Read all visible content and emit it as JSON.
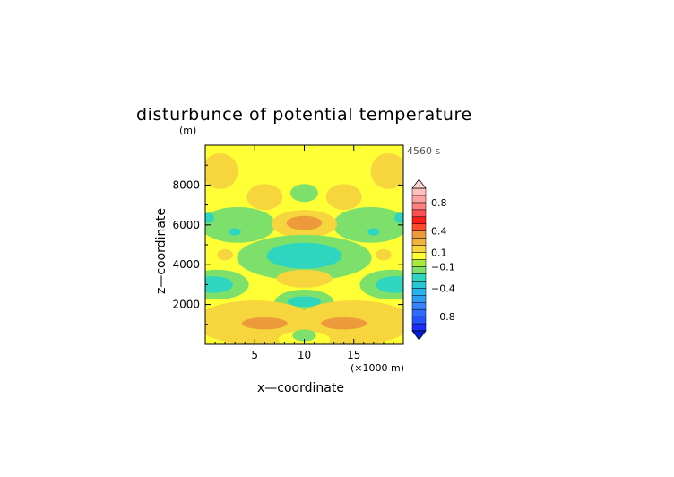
{
  "chart_data": {
    "type": "heatmap",
    "title": "disturbunce of potential temperature",
    "unit_label": "(m)",
    "time_label": "4560 s",
    "xlabel": "x—coordinate",
    "ylabel": "z—coordinate",
    "x_unit": "(×1000 m)",
    "xlim": [
      0,
      20
    ],
    "ylim": [
      0,
      10000
    ],
    "x_ticks": [
      {
        "value": 5,
        "label": "5"
      },
      {
        "value": 10,
        "label": "10"
      },
      {
        "value": 15,
        "label": "15"
      }
    ],
    "y_ticks": [
      {
        "value": 2000,
        "label": "2000"
      },
      {
        "value": 4000,
        "label": "4000"
      },
      {
        "value": 6000,
        "label": "6000"
      },
      {
        "value": 8000,
        "label": "8000"
      }
    ],
    "background_value": 0.0,
    "regions": [
      {
        "cx": 1.5,
        "cy": 8700,
        "rx": 1.8,
        "ry": 900,
        "value": 0.15
      },
      {
        "cx": 18.5,
        "cy": 8700,
        "rx": 1.8,
        "ry": 900,
        "value": 0.15
      },
      {
        "cx": 6.0,
        "cy": 7400,
        "rx": 1.8,
        "ry": 650,
        "value": 0.15
      },
      {
        "cx": 14.0,
        "cy": 7400,
        "rx": 1.8,
        "ry": 650,
        "value": 0.15
      },
      {
        "cx": 10.0,
        "cy": 7600,
        "rx": 1.4,
        "ry": 450,
        "value": -0.15
      },
      {
        "cx": 3.3,
        "cy": 6000,
        "rx": 3.8,
        "ry": 900,
        "value": -0.15
      },
      {
        "cx": 16.7,
        "cy": 6000,
        "rx": 3.8,
        "ry": 900,
        "value": -0.15
      },
      {
        "cx": 10.0,
        "cy": 6050,
        "rx": 3.3,
        "ry": 700,
        "value": 0.15
      },
      {
        "cx": 10.0,
        "cy": 6100,
        "rx": 1.8,
        "ry": 350,
        "value": 0.3
      },
      {
        "cx": 0.3,
        "cy": 6350,
        "rx": 0.6,
        "ry": 260,
        "value": -0.3
      },
      {
        "cx": 19.7,
        "cy": 6350,
        "rx": 0.6,
        "ry": 260,
        "value": -0.3
      },
      {
        "cx": 3.0,
        "cy": 5650,
        "rx": 0.6,
        "ry": 190,
        "value": -0.3
      },
      {
        "cx": 17.0,
        "cy": 5650,
        "rx": 0.6,
        "ry": 190,
        "value": -0.3
      },
      {
        "cx": 10.0,
        "cy": 4350,
        "rx": 6.8,
        "ry": 1150,
        "value": -0.15
      },
      {
        "cx": 10.0,
        "cy": 4450,
        "rx": 3.8,
        "ry": 650,
        "value": -0.3
      },
      {
        "cx": 2.0,
        "cy": 4500,
        "rx": 0.8,
        "ry": 280,
        "value": 0.15
      },
      {
        "cx": 18.0,
        "cy": 4500,
        "rx": 0.8,
        "ry": 280,
        "value": 0.15
      },
      {
        "cx": 1.2,
        "cy": 3000,
        "rx": 3.2,
        "ry": 750,
        "value": -0.15
      },
      {
        "cx": 18.8,
        "cy": 3000,
        "rx": 3.2,
        "ry": 750,
        "value": -0.15
      },
      {
        "cx": 0.8,
        "cy": 3000,
        "rx": 2.0,
        "ry": 420,
        "value": -0.3
      },
      {
        "cx": 19.2,
        "cy": 3000,
        "rx": 2.0,
        "ry": 420,
        "value": -0.3
      },
      {
        "cx": 10.0,
        "cy": 3300,
        "rx": 2.8,
        "ry": 450,
        "value": 0.15
      },
      {
        "cx": 10.0,
        "cy": 2100,
        "rx": 3.0,
        "ry": 650,
        "value": -0.15
      },
      {
        "cx": 10.0,
        "cy": 2150,
        "rx": 1.7,
        "ry": 260,
        "value": -0.3
      },
      {
        "cx": 5.0,
        "cy": 1100,
        "rx": 6.0,
        "ry": 1100,
        "value": 0.15
      },
      {
        "cx": 15.0,
        "cy": 1100,
        "rx": 6.0,
        "ry": 1100,
        "value": 0.15
      },
      {
        "cx": 6.0,
        "cy": 1050,
        "rx": 2.3,
        "ry": 300,
        "value": 0.3
      },
      {
        "cx": 14.0,
        "cy": 1050,
        "rx": 2.3,
        "ry": 300,
        "value": 0.3
      },
      {
        "cx": 10.0,
        "cy": 250,
        "rx": 2.6,
        "ry": 420,
        "value": 0.0
      },
      {
        "cx": 10.0,
        "cy": 450,
        "rx": 1.2,
        "ry": 300,
        "value": -0.15
      }
    ],
    "colorbar": {
      "levels": [
        -1.0,
        -0.9,
        -0.8,
        -0.7,
        -0.6,
        -0.5,
        -0.4,
        -0.3,
        -0.2,
        -0.1,
        0.0,
        0.1,
        0.2,
        0.3,
        0.4,
        0.5,
        0.6,
        0.7,
        0.8,
        0.9,
        1.0
      ],
      "colors": [
        "#1a2cff",
        "#2452ff",
        "#2d6cff",
        "#3b82ff",
        "#2f9cf2",
        "#26b5ea",
        "#27c6d4",
        "#2fd6bf",
        "#7de06a",
        "#a8ea3c",
        "#ffff35",
        "#f7d53c",
        "#f2b33a",
        "#ec9a3a",
        "#ff4a2a",
        "#ff1e1e",
        "#ff5050",
        "#ff8080",
        "#ffa0a0",
        "#ffbfbf"
      ],
      "under_color": "#001fd8",
      "over_color": "#ffd2d2",
      "labels": [
        {
          "value": 0.8,
          "label": "0.8"
        },
        {
          "value": 0.4,
          "label": "0.4"
        },
        {
          "value": 0.1,
          "label": "0.1"
        },
        {
          "value": -0.1,
          "label": "−0.1"
        },
        {
          "value": -0.4,
          "label": "−0.4"
        },
        {
          "value": -0.8,
          "label": "−0.8"
        }
      ]
    }
  }
}
